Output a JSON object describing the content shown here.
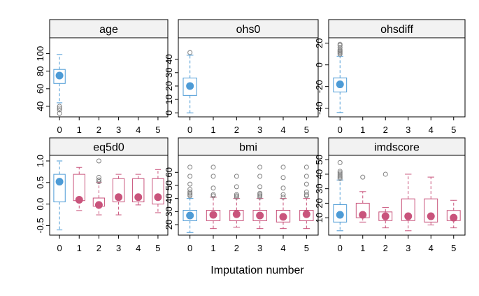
{
  "colors": {
    "observed": "#4d9bd6",
    "imputed": "#c9547c",
    "outlier": "#808080",
    "strip_fill": "#f2f2f2"
  },
  "chart_data": {
    "type": "box",
    "xlabel": "Imputation number",
    "x_categories": [
      "0",
      "1",
      "2",
      "3",
      "4",
      "5"
    ],
    "observed_category": "0",
    "panels": [
      {
        "title": "age",
        "ylim": [
          28,
          118
        ],
        "yticks": [
          40,
          60,
          80,
          100
        ],
        "boxes": [
          {
            "x": "0",
            "min": 44,
            "q1": 66,
            "median": 75,
            "q3": 82,
            "max": 99,
            "outliers": [
              32,
              36,
              38,
              40
            ]
          }
        ]
      },
      {
        "title": "ohs0",
        "ylim": [
          -3,
          56
        ],
        "yticks": [
          0,
          10,
          20,
          30,
          40
        ],
        "boxes": [
          {
            "x": "0",
            "min": 0,
            "q1": 13,
            "median": 20,
            "q3": 26,
            "max": 43,
            "outliers": [
              45
            ]
          }
        ]
      },
      {
        "title": "ohsdiff",
        "ylim": [
          -48,
          25
        ],
        "yticks": [
          -40,
          -20,
          0,
          20
        ],
        "boxes": [
          {
            "x": "0",
            "min": -44,
            "q1": -25,
            "median": -18,
            "q3": -12,
            "max": 8,
            "outliers": [
              10,
              11,
              12,
              13,
              14,
              16,
              18,
              19
            ]
          }
        ]
      },
      {
        "title": "eq5d0",
        "ylim": [
          -0.72,
          1.13
        ],
        "yticks": [
          -0.5,
          0.0,
          0.5,
          1.0
        ],
        "yticklabels": [
          "-0.5",
          "0.0",
          "0.5",
          "1.0"
        ],
        "boxes": [
          {
            "x": "0",
            "min": -0.6,
            "q1": 0.05,
            "median": 0.52,
            "q3": 0.69,
            "max": 1.0,
            "outliers": []
          },
          {
            "x": "1",
            "min": -0.15,
            "q1": 0.08,
            "median": 0.1,
            "q3": 0.69,
            "max": 0.85,
            "outliers": []
          },
          {
            "x": "2",
            "min": -0.25,
            "q1": -0.05,
            "median": -0.02,
            "q3": 0.14,
            "max": 0.5,
            "outliers": [
              0.52,
              0.56,
              0.62,
              1.0
            ]
          },
          {
            "x": "3",
            "min": -0.25,
            "q1": 0.05,
            "median": 0.16,
            "q3": 0.59,
            "max": 0.69,
            "outliers": []
          },
          {
            "x": "4",
            "min": -0.02,
            "q1": 0.05,
            "median": 0.16,
            "q3": 0.59,
            "max": 0.69,
            "outliers": []
          },
          {
            "x": "5",
            "min": -0.2,
            "q1": 0.0,
            "median": 0.16,
            "q3": 0.59,
            "max": 0.8,
            "outliers": []
          }
        ]
      },
      {
        "title": "bmi",
        "ylim": [
          12,
          73
        ],
        "yticks": [
          20,
          30,
          40,
          50,
          60
        ],
        "boxes": [
          {
            "x": "0",
            "min": 14,
            "q1": 23,
            "median": 27,
            "q3": 31,
            "max": 40,
            "outliers": [
              42,
              43,
              44,
              45,
              47,
              51,
              57,
              64
            ]
          },
          {
            "x": "1",
            "min": 17,
            "q1": 23,
            "median": 27.5,
            "q3": 31,
            "max": 41,
            "outliers": [
              42,
              43,
              48,
              57,
              64
            ]
          },
          {
            "x": "2",
            "min": 18,
            "q1": 23,
            "median": 28,
            "q3": 31,
            "max": 40,
            "outliers": [
              41,
              42,
              43,
              49,
              57
            ]
          },
          {
            "x": "3",
            "min": 17,
            "q1": 23,
            "median": 27,
            "q3": 31,
            "max": 40,
            "outliers": [
              41,
              42,
              43,
              44,
              49,
              57,
              64
            ]
          },
          {
            "x": "4",
            "min": 17,
            "q1": 22,
            "median": 26,
            "q3": 31,
            "max": 40,
            "outliers": [
              41,
              43,
              48,
              56,
              64
            ]
          },
          {
            "x": "5",
            "min": 17,
            "q1": 23,
            "median": 28,
            "q3": 31,
            "max": 40,
            "outliers": [
              42,
              43,
              45,
              51,
              57,
              64
            ]
          }
        ]
      },
      {
        "title": "imdscore",
        "ylim": [
          -2,
          53
        ],
        "yticks": [
          10,
          20,
          30,
          40,
          50
        ],
        "boxes": [
          {
            "x": "0",
            "min": 1,
            "q1": 7,
            "median": 12,
            "q3": 19,
            "max": 36,
            "outliers": [
              37,
              38,
              39,
              40,
              41,
              42,
              48
            ]
          },
          {
            "x": "1",
            "min": 7,
            "q1": 10,
            "median": 12,
            "q3": 20,
            "max": 28,
            "outliers": [
              38
            ]
          },
          {
            "x": "2",
            "min": 3,
            "q1": 8,
            "median": 11,
            "q3": 14,
            "max": 17,
            "outliers": [
              40
            ]
          },
          {
            "x": "3",
            "min": 1,
            "q1": 8,
            "median": 11,
            "q3": 23,
            "max": 40,
            "outliers": []
          },
          {
            "x": "4",
            "min": 5,
            "q1": 7,
            "median": 11,
            "q3": 23,
            "max": 38,
            "outliers": []
          },
          {
            "x": "5",
            "min": 3,
            "q1": 8,
            "median": 10,
            "q3": 15,
            "max": 22,
            "outliers": []
          }
        ]
      }
    ]
  }
}
